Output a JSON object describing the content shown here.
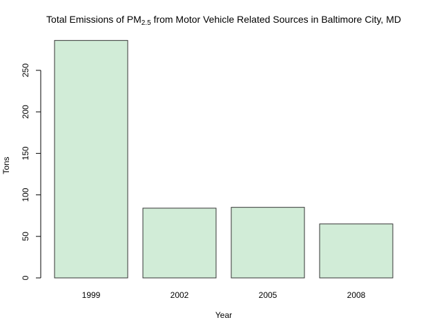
{
  "chart_data": {
    "type": "bar",
    "title": [
      "Total Emissions of PM",
      "2.5",
      " from Motor Vehicle Related Sources in Baltimore City, MD"
    ],
    "x_label": "Year",
    "y_label": "Tons",
    "categories": [
      "1999",
      "2002",
      "2005",
      "2008"
    ],
    "values": [
      286,
      84,
      85,
      65
    ],
    "color": "#d1ecd7",
    "ylim": [
      0,
      297
    ],
    "yticks": [
      0,
      50,
      100,
      150,
      200,
      250
    ],
    "grid": false
  }
}
